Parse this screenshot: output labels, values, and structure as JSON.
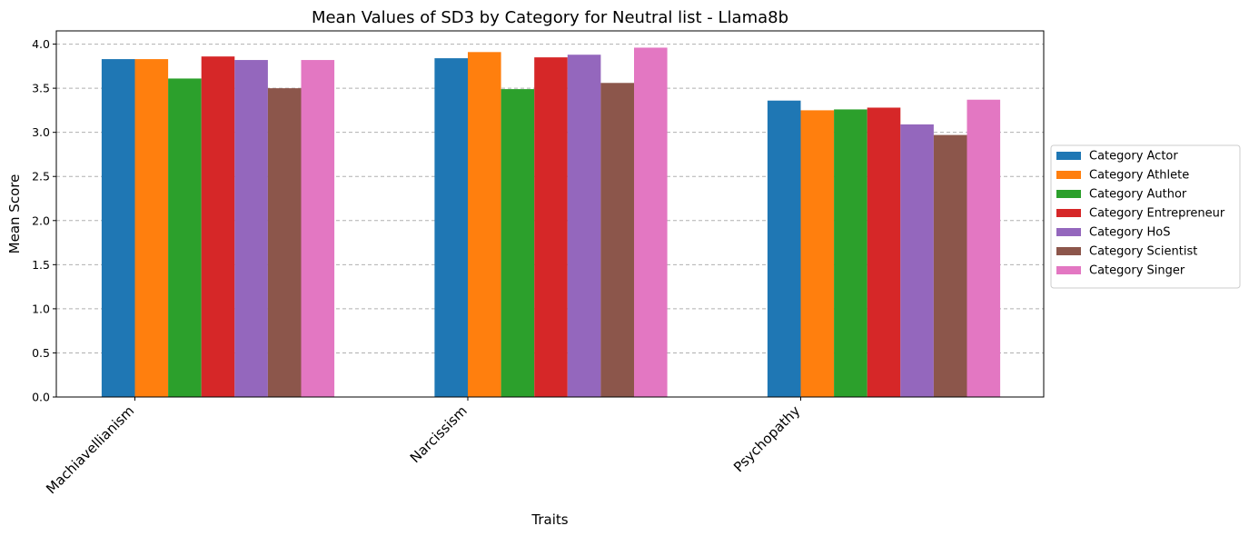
{
  "chart_data": {
    "type": "bar",
    "title": "Mean Values of SD3 by Category for Neutral list - Llama8b",
    "xlabel": "Traits",
    "ylabel": "Mean Score",
    "categories": [
      "Machiavellianism",
      "Narcissism",
      "Psychopathy"
    ],
    "ylim": [
      0,
      4.15
    ],
    "yticks": [
      "0.0",
      "0.5",
      "1.0",
      "1.5",
      "2.0",
      "2.5",
      "3.0",
      "3.5",
      "4.0"
    ],
    "grid": "y-dashed",
    "legend_position": "center-right-outside",
    "series": [
      {
        "name": "Category Actor",
        "color": "#1f77b4",
        "values": [
          3.83,
          3.84,
          3.36
        ]
      },
      {
        "name": "Category Athlete",
        "color": "#ff7f0e",
        "values": [
          3.83,
          3.91,
          3.25
        ]
      },
      {
        "name": "Category Author",
        "color": "#2ca02c",
        "values": [
          3.61,
          3.49,
          3.26
        ]
      },
      {
        "name": "Category Entrepreneur",
        "color": "#d62728",
        "values": [
          3.86,
          3.85,
          3.28
        ]
      },
      {
        "name": "Category HoS",
        "color": "#9467bd",
        "values": [
          3.82,
          3.88,
          3.09
        ]
      },
      {
        "name": "Category Scientist",
        "color": "#8c564b",
        "values": [
          3.5,
          3.56,
          2.97
        ]
      },
      {
        "name": "Category Singer",
        "color": "#e377c2",
        "values": [
          3.82,
          3.96,
          3.37
        ]
      }
    ]
  }
}
